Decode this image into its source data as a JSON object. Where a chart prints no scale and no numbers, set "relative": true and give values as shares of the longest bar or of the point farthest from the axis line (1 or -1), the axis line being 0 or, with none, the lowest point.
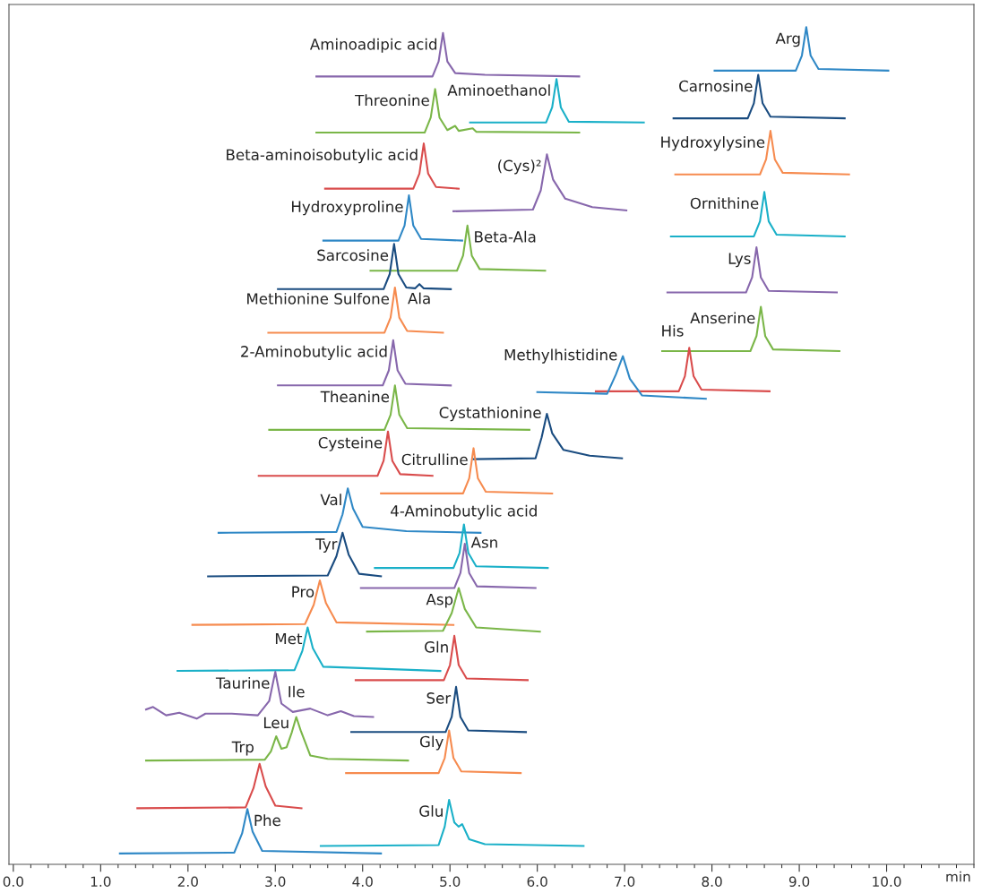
{
  "chart_data": {
    "type": "line",
    "relative": true,
    "xlabel": "min",
    "xlim": [
      -0.05,
      11.0
    ],
    "xticks": [
      {
        "value": 0,
        "label": "0.0"
      },
      {
        "value": 1,
        "label": "1.0"
      },
      {
        "value": 2,
        "label": "2.0"
      },
      {
        "value": 3,
        "label": "3.0"
      },
      {
        "value": 4,
        "label": "4.0"
      },
      {
        "value": 5,
        "label": "5.0"
      },
      {
        "value": 6,
        "label": "6.0"
      },
      {
        "value": 7,
        "label": "7.0"
      },
      {
        "value": 8,
        "label": "8.0"
      },
      {
        "value": 9,
        "label": "9.0"
      },
      {
        "value": 10,
        "label": "10.0"
      }
    ],
    "grid": false,
    "legend": false,
    "marker": "none",
    "line_style": "solid",
    "tick_labels": "x",
    "annotations": [
      {
        "text": "Ala",
        "x": 4.65,
        "y": 0.693
      },
      {
        "text": "Leu",
        "x": 3.01,
        "y": 0.153
      },
      {
        "text": "Ile",
        "x": 3.24,
        "y": 0.176
      }
    ],
    "series": [
      {
        "name": "Aminoadipic acid",
        "color": "#8767ac",
        "x": [
          3.47,
          4.8,
          4.87,
          4.92,
          4.97,
          5.06,
          5.4,
          6.48
        ],
        "values": [
          0.941,
          0.941,
          0.959,
          0.993,
          0.959,
          0.945,
          0.943,
          0.941
        ]
      },
      {
        "name": "Aminoethanol",
        "color": "#1ab0c8",
        "x": [
          5.23,
          6.1,
          6.17,
          6.22,
          6.27,
          6.36,
          7.22
        ],
        "values": [
          0.886,
          0.886,
          0.904,
          0.938,
          0.904,
          0.887,
          0.886
        ]
      },
      {
        "name": "Threonine",
        "color": "#7ab648",
        "x": [
          3.47,
          4.71,
          4.78,
          4.83,
          4.88,
          4.97,
          5.06,
          5.1,
          5.26,
          5.3,
          6.48
        ],
        "values": [
          0.874,
          0.874,
          0.892,
          0.926,
          0.892,
          0.877,
          0.882,
          0.876,
          0.879,
          0.875,
          0.874
        ]
      },
      {
        "name": "Arg",
        "color": "#2f88c6",
        "x": [
          8.03,
          8.96,
          9.03,
          9.08,
          9.13,
          9.22,
          10.02
        ],
        "values": [
          0.948,
          0.948,
          0.966,
          1,
          0.966,
          0.95,
          0.948
        ]
      },
      {
        "name": "Carnosine",
        "color": "#1a4c80",
        "x": [
          7.56,
          8.41,
          8.48,
          8.53,
          8.58,
          8.67,
          9.52
        ],
        "values": [
          0.891,
          0.891,
          0.909,
          0.943,
          0.909,
          0.893,
          0.891
        ]
      },
      {
        "name": "Hydroxylysine",
        "color": "#f68b4f",
        "x": [
          7.58,
          8.55,
          8.62,
          8.67,
          8.72,
          8.81,
          9.57
        ],
        "values": [
          0.824,
          0.824,
          0.842,
          0.876,
          0.842,
          0.826,
          0.824
        ]
      },
      {
        "name": "Beta-aminoisobutylic acid",
        "color": "#d94c4c",
        "x": [
          3.57,
          4.58,
          4.65,
          4.7,
          4.75,
          4.84,
          5.1
        ],
        "values": [
          0.807,
          0.807,
          0.825,
          0.861,
          0.825,
          0.809,
          0.807
        ]
      },
      {
        "name": "(Cys)²",
        "color": "#8767ac",
        "x": [
          5.04,
          5.95,
          6.04,
          6.11,
          6.18,
          6.32,
          6.63,
          7.02
        ],
        "values": [
          0.78,
          0.782,
          0.805,
          0.848,
          0.818,
          0.795,
          0.785,
          0.781
        ]
      },
      {
        "name": "Hydroxyproline",
        "color": "#2f88c6",
        "x": [
          3.55,
          4.41,
          4.48,
          4.53,
          4.58,
          4.67,
          5.14
        ],
        "values": [
          0.745,
          0.745,
          0.763,
          0.799,
          0.763,
          0.747,
          0.745
        ]
      },
      {
        "name": "Ornithine",
        "color": "#1ab0c8",
        "x": [
          7.53,
          8.48,
          8.55,
          8.6,
          8.65,
          8.74,
          9.52
        ],
        "values": [
          0.75,
          0.75,
          0.768,
          0.803,
          0.768,
          0.752,
          0.75
        ]
      },
      {
        "name": "Beta-Ala",
        "color": "#7ab648",
        "x": [
          4.09,
          5.08,
          5.15,
          5.2,
          5.25,
          5.34,
          6.09
        ],
        "values": [
          0.709,
          0.709,
          0.727,
          0.763,
          0.727,
          0.711,
          0.709
        ]
      },
      {
        "name": "Sarcosine",
        "color": "#1a4c80",
        "x": [
          3.03,
          4.24,
          4.31,
          4.36,
          4.41,
          4.5,
          4.6,
          4.65,
          4.7,
          5.01
        ],
        "values": [
          0.687,
          0.687,
          0.705,
          0.741,
          0.705,
          0.689,
          0.688,
          0.693,
          0.688,
          0.687
        ]
      },
      {
        "name": "Lys",
        "color": "#8767ac",
        "x": [
          7.49,
          8.39,
          8.46,
          8.51,
          8.56,
          8.65,
          9.43
        ],
        "values": [
          0.683,
          0.683,
          0.701,
          0.737,
          0.701,
          0.685,
          0.683
        ]
      },
      {
        "name": "Methionine Sulfone",
        "color": "#f68b4f",
        "x": [
          2.92,
          4.25,
          4.32,
          4.37,
          4.42,
          4.51,
          4.92
        ],
        "values": [
          0.635,
          0.635,
          0.653,
          0.689,
          0.653,
          0.637,
          0.635
        ]
      },
      {
        "name": "Anserine",
        "color": "#7ab648",
        "x": [
          7.43,
          8.44,
          8.51,
          8.56,
          8.61,
          8.7,
          9.46
        ],
        "values": [
          0.613,
          0.613,
          0.631,
          0.666,
          0.631,
          0.615,
          0.613
        ]
      },
      {
        "name": "2-Aminobutylic acid",
        "color": "#8767ac",
        "x": [
          3.03,
          4.23,
          4.3,
          4.35,
          4.4,
          4.49,
          5.01
        ],
        "values": [
          0.572,
          0.572,
          0.59,
          0.626,
          0.59,
          0.574,
          0.572
        ]
      },
      {
        "name": "His",
        "color": "#d94c4c",
        "x": [
          6.67,
          7.62,
          7.69,
          7.74,
          7.79,
          7.88,
          8.66
        ],
        "values": [
          0.565,
          0.565,
          0.583,
          0.617,
          0.583,
          0.567,
          0.565
        ]
      },
      {
        "name": "Methylhistidine",
        "color": "#2f88c6",
        "x": [
          6.0,
          6.8,
          6.9,
          6.98,
          7.06,
          7.2,
          7.93
        ],
        "values": [
          0.564,
          0.562,
          0.585,
          0.607,
          0.58,
          0.56,
          0.556
        ]
      },
      {
        "name": "Theanine",
        "color": "#7ab648",
        "x": [
          2.93,
          4.25,
          4.32,
          4.37,
          4.42,
          4.51,
          5.91
        ],
        "values": [
          0.519,
          0.519,
          0.537,
          0.572,
          0.537,
          0.521,
          0.519
        ]
      },
      {
        "name": "Cystathionine",
        "color": "#1a4c80",
        "x": [
          5.27,
          5.98,
          6.05,
          6.11,
          6.17,
          6.3,
          6.6,
          6.97
        ],
        "values": [
          0.484,
          0.485,
          0.51,
          0.538,
          0.515,
          0.495,
          0.488,
          0.485
        ]
      },
      {
        "name": "Cysteine",
        "color": "#d94c4c",
        "x": [
          2.81,
          4.17,
          4.24,
          4.29,
          4.34,
          4.43,
          4.8
        ],
        "values": [
          0.464,
          0.464,
          0.482,
          0.517,
          0.482,
          0.466,
          0.464
        ]
      },
      {
        "name": "Citrulline",
        "color": "#f68b4f",
        "x": [
          4.21,
          5.15,
          5.22,
          5.27,
          5.32,
          5.41,
          6.17
        ],
        "values": [
          0.443,
          0.443,
          0.461,
          0.497,
          0.461,
          0.445,
          0.443
        ]
      },
      {
        "name": "Val",
        "color": "#2f88c6",
        "x": [
          2.35,
          3.7,
          3.77,
          3.83,
          3.89,
          4.0,
          4.5,
          5.35
        ],
        "values": [
          0.396,
          0.397,
          0.418,
          0.449,
          0.425,
          0.403,
          0.398,
          0.396
        ]
      },
      {
        "name": "4-Aminobutylic acid",
        "color": "#1ab0c8",
        "x": [
          4.14,
          5.04,
          5.11,
          5.16,
          5.21,
          5.3,
          6.12
        ],
        "values": [
          0.354,
          0.354,
          0.372,
          0.406,
          0.372,
          0.356,
          0.354
        ]
      },
      {
        "name": "Tyr",
        "color": "#1a4c80",
        "x": [
          2.23,
          3.6,
          3.7,
          3.77,
          3.84,
          3.96,
          4.21
        ],
        "values": [
          0.344,
          0.345,
          0.368,
          0.396,
          0.37,
          0.347,
          0.344
        ]
      },
      {
        "name": "Asn",
        "color": "#8767ac",
        "x": [
          3.98,
          5.05,
          5.12,
          5.17,
          5.22,
          5.31,
          5.98
        ],
        "values": [
          0.33,
          0.33,
          0.348,
          0.383,
          0.348,
          0.332,
          0.33
        ]
      },
      {
        "name": "Pro",
        "color": "#f68b4f",
        "x": [
          2.05,
          3.34,
          3.44,
          3.51,
          3.58,
          3.7,
          5.04
        ],
        "values": [
          0.286,
          0.287,
          0.31,
          0.339,
          0.312,
          0.289,
          0.286
        ]
      },
      {
        "name": "Asp",
        "color": "#7ab648",
        "x": [
          4.05,
          4.92,
          5.02,
          5.1,
          5.17,
          5.3,
          6.03
        ],
        "values": [
          0.278,
          0.279,
          0.3,
          0.33,
          0.305,
          0.283,
          0.278
        ]
      },
      {
        "name": "Met",
        "color": "#1ab0c8",
        "x": [
          1.88,
          3.22,
          3.31,
          3.37,
          3.43,
          3.55,
          4.89
        ],
        "values": [
          0.231,
          0.232,
          0.255,
          0.283,
          0.258,
          0.236,
          0.231
        ]
      },
      {
        "name": "Gln",
        "color": "#d94c4c",
        "x": [
          3.92,
          4.93,
          5.0,
          5.05,
          5.1,
          5.19,
          5.89
        ],
        "values": [
          0.22,
          0.22,
          0.238,
          0.273,
          0.238,
          0.222,
          0.22
        ]
      },
      {
        "name": "Taurine",
        "color": "#8767ac",
        "x": [
          1.52,
          1.6,
          1.75,
          1.9,
          2.1,
          2.2,
          2.5,
          2.8,
          2.93,
          3.0,
          3.07,
          3.2,
          3.4,
          3.6,
          3.75,
          3.9,
          4.12
        ],
        "values": [
          0.185,
          0.188,
          0.178,
          0.181,
          0.174,
          0.18,
          0.18,
          0.178,
          0.195,
          0.23,
          0.192,
          0.182,
          0.186,
          0.178,
          0.183,
          0.177,
          0.176
        ]
      },
      {
        "name": "Ser",
        "color": "#1a4c80",
        "x": [
          3.87,
          4.95,
          5.02,
          5.07,
          5.12,
          5.21,
          5.87
        ],
        "values": [
          0.158,
          0.158,
          0.176,
          0.212,
          0.176,
          0.16,
          0.158
        ]
      },
      {
        "color": "#7ab648",
        "x": [
          1.52,
          2.88,
          2.95,
          3.01,
          3.07,
          3.13,
          3.19,
          3.24,
          3.29,
          3.4,
          3.6,
          4.52
        ],
        "values": [
          0.124,
          0.125,
          0.135,
          0.153,
          0.138,
          0.14,
          0.158,
          0.176,
          0.16,
          0.13,
          0.126,
          0.124
        ]
      },
      {
        "name": "Gly",
        "color": "#f68b4f",
        "x": [
          3.81,
          4.87,
          4.94,
          4.99,
          5.04,
          5.13,
          5.81
        ],
        "values": [
          0.109,
          0.109,
          0.127,
          0.16,
          0.127,
          0.111,
          0.109
        ]
      },
      {
        "name": "Trp",
        "color": "#d94c4c",
        "x": [
          1.42,
          2.66,
          2.75,
          2.82,
          2.89,
          3.0,
          3.3
        ],
        "values": [
          0.067,
          0.068,
          0.091,
          0.12,
          0.093,
          0.07,
          0.067
        ]
      },
      {
        "name": "Phe",
        "color": "#2f88c6",
        "x": [
          1.22,
          2.53,
          2.62,
          2.68,
          2.74,
          2.85,
          4.21
        ],
        "values": [
          0.013,
          0.014,
          0.037,
          0.066,
          0.039,
          0.016,
          0.013
        ]
      },
      {
        "name": "Glu",
        "color": "#1ab0c8",
        "x": [
          3.52,
          4.87,
          4.94,
          4.99,
          5.05,
          5.1,
          5.14,
          5.22,
          5.4,
          6.53
        ],
        "values": [
          0.022,
          0.023,
          0.045,
          0.077,
          0.05,
          0.045,
          0.048,
          0.03,
          0.024,
          0.022
        ]
      }
    ]
  }
}
